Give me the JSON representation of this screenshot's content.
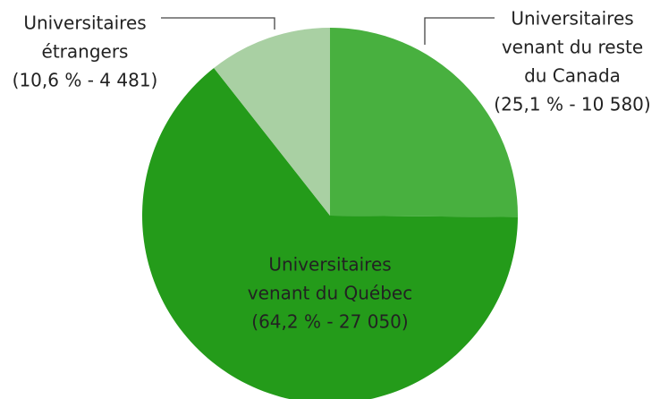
{
  "chart_data": {
    "type": "pie",
    "categories": [
      [
        "Universitaires",
        "venant du reste",
        "du Canada"
      ],
      [
        "Universitaires",
        "venant du Québec"
      ],
      [
        "Universitaires",
        "étrangers"
      ]
    ],
    "values": [
      25.1,
      64.2,
      10.6
    ],
    "value_labels": [
      "(25,1 % - 10 580)",
      "(64,2 % - 27 050)",
      "(10,6 % - 4 481)"
    ],
    "colors": [
      "#48b03f",
      "#249b1a",
      "#a9d0a3"
    ]
  }
}
